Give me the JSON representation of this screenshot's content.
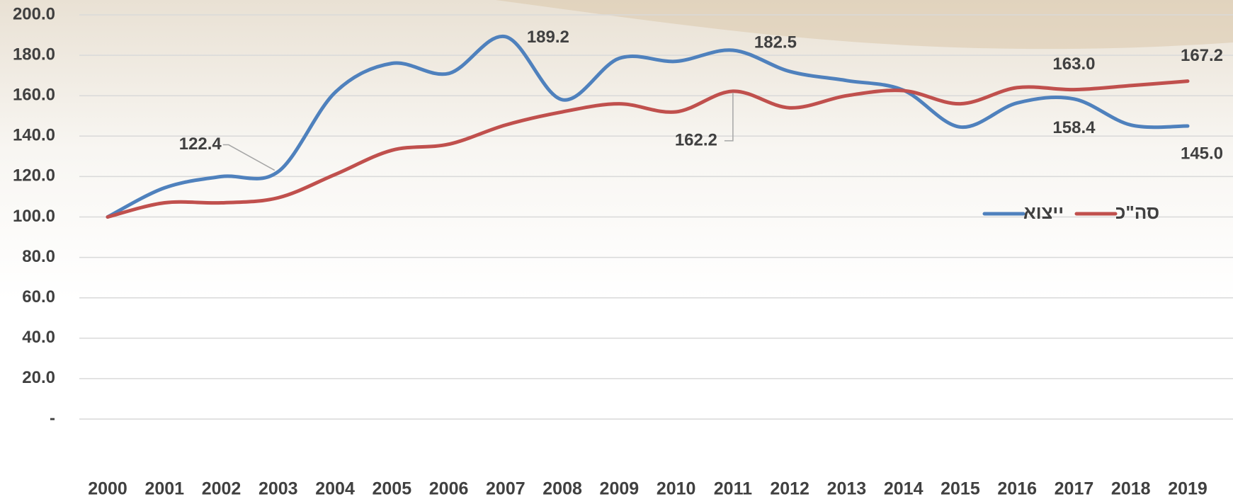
{
  "chart_data": {
    "type": "line",
    "categories": [
      "2000",
      "2001",
      "2002",
      "2003",
      "2004",
      "2005",
      "2006",
      "2007",
      "2008",
      "2009",
      "2010",
      "2011",
      "2012",
      "2013",
      "2014",
      "2015",
      "2016",
      "2017",
      "2018",
      "2019"
    ],
    "series": [
      {
        "name": "ייצוא",
        "color": "#4f81bd",
        "values": [
          100,
          114.4,
          120,
          122.4,
          161.6,
          176,
          171,
          189.2,
          158,
          178.5,
          177,
          182.5,
          172,
          167.5,
          162.7,
          144.5,
          156.4,
          158.4,
          145.5,
          145.0
        ],
        "value_labels": [
          null,
          null,
          null,
          "122.4",
          null,
          null,
          null,
          "189.2",
          null,
          null,
          null,
          "182.5",
          null,
          null,
          null,
          null,
          null,
          "158.4",
          null,
          "145.0"
        ]
      },
      {
        "name": "סה\"כ",
        "color": "#c0504d",
        "values": [
          100,
          107,
          107,
          109.5,
          121,
          133,
          136,
          145.5,
          152,
          156,
          152,
          162.2,
          154,
          160,
          162.5,
          156,
          164,
          163.0,
          165,
          167.2
        ],
        "value_labels": [
          null,
          null,
          null,
          null,
          null,
          null,
          null,
          null,
          null,
          null,
          null,
          "162.2",
          null,
          null,
          null,
          null,
          null,
          "163.0",
          null,
          "167.2"
        ]
      }
    ],
    "ylim": [
      0,
      200
    ],
    "yticks": [
      {
        "value": 0,
        "label": "-"
      },
      {
        "value": 20,
        "label": "20.0"
      },
      {
        "value": 40,
        "label": "40.0"
      },
      {
        "value": 60,
        "label": "60.0"
      },
      {
        "value": 80,
        "label": "80.0"
      },
      {
        "value": 100,
        "label": "100.0"
      },
      {
        "value": 120,
        "label": "120.0"
      },
      {
        "value": 140,
        "label": "140.0"
      },
      {
        "value": 160,
        "label": "160.0"
      },
      {
        "value": 180,
        "label": "180.0"
      },
      {
        "value": 200,
        "label": "200.0"
      }
    ],
    "grid": true,
    "legend": "right"
  }
}
